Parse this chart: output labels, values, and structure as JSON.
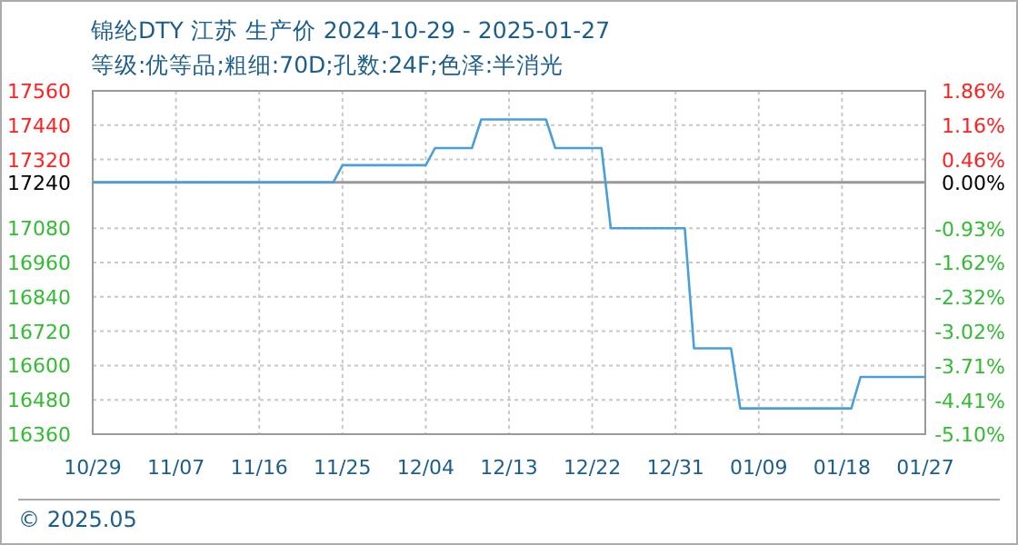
{
  "chart_data": {
    "type": "line",
    "title": "锦纶DTY 江苏 生产价 2024-10-29 - 2025-01-27",
    "subtitle": "等级:优等品;粗细:70D;孔数:24F;色泽:半消光",
    "series": [
      {
        "color": "#4a9fd8",
        "x": [
          "2024-10-29",
          "2024-11-24",
          "2024-11-25",
          "2024-12-04",
          "2024-12-05",
          "2024-12-09",
          "2024-12-10",
          "2024-12-17",
          "2024-12-18",
          "2024-12-23",
          "2024-12-24",
          "2025-01-01",
          "2025-01-02",
          "2025-01-06",
          "2025-01-07",
          "2025-01-19",
          "2025-01-20",
          "2025-01-27"
        ],
        "values": [
          17240,
          17240,
          17300,
          17300,
          17360,
          17360,
          17460,
          17460,
          17360,
          17360,
          17080,
          17080,
          16660,
          16660,
          16450,
          16450,
          16560,
          16560
        ]
      }
    ],
    "xlim": [
      "2024-10-29",
      "2025-01-27"
    ],
    "xticks": [
      {
        "value": "2024-10-29",
        "label": "10/29"
      },
      {
        "value": "2024-11-07",
        "label": "11/07"
      },
      {
        "value": "2024-11-16",
        "label": "11/16"
      },
      {
        "value": "2024-11-25",
        "label": "11/25"
      },
      {
        "value": "2024-12-04",
        "label": "12/04"
      },
      {
        "value": "2024-12-13",
        "label": "12/13"
      },
      {
        "value": "2024-12-22",
        "label": "12/22"
      },
      {
        "value": "2024-12-31",
        "label": "12/31"
      },
      {
        "value": "2025-01-09",
        "label": "01/09"
      },
      {
        "value": "2025-01-18",
        "label": "01/18"
      },
      {
        "value": "2025-01-27",
        "label": "01/27"
      }
    ],
    "ylim": [
      16360,
      17560
    ],
    "yticks": [
      17560,
      17440,
      17320,
      17240,
      17080,
      16960,
      16840,
      16720,
      16600,
      16480,
      16360
    ],
    "y2lim": [
      -5.1,
      1.86
    ],
    "y2ticks": [
      {
        "value": 1.86,
        "label": "1.86%"
      },
      {
        "value": 1.16,
        "label": "1.16%"
      },
      {
        "value": 0.46,
        "label": "0.46%"
      },
      {
        "value": 0.0,
        "label": "0.00%"
      },
      {
        "value": -0.93,
        "label": "-0.93%"
      },
      {
        "value": -1.62,
        "label": "-1.62%"
      },
      {
        "value": -2.32,
        "label": "-2.32%"
      },
      {
        "value": -3.02,
        "label": "-3.02%"
      },
      {
        "value": -3.71,
        "label": "-3.71%"
      },
      {
        "value": -4.41,
        "label": "-4.41%"
      },
      {
        "value": -5.1,
        "label": "-5.10%"
      }
    ],
    "ref_lines": [
      {
        "axis": "y",
        "value": 17240,
        "color": "#999999",
        "line_style": "solid"
      }
    ],
    "grid": true,
    "marker": "none",
    "line_style": "solid",
    "annotations": [
      "© 2025.05"
    ]
  }
}
